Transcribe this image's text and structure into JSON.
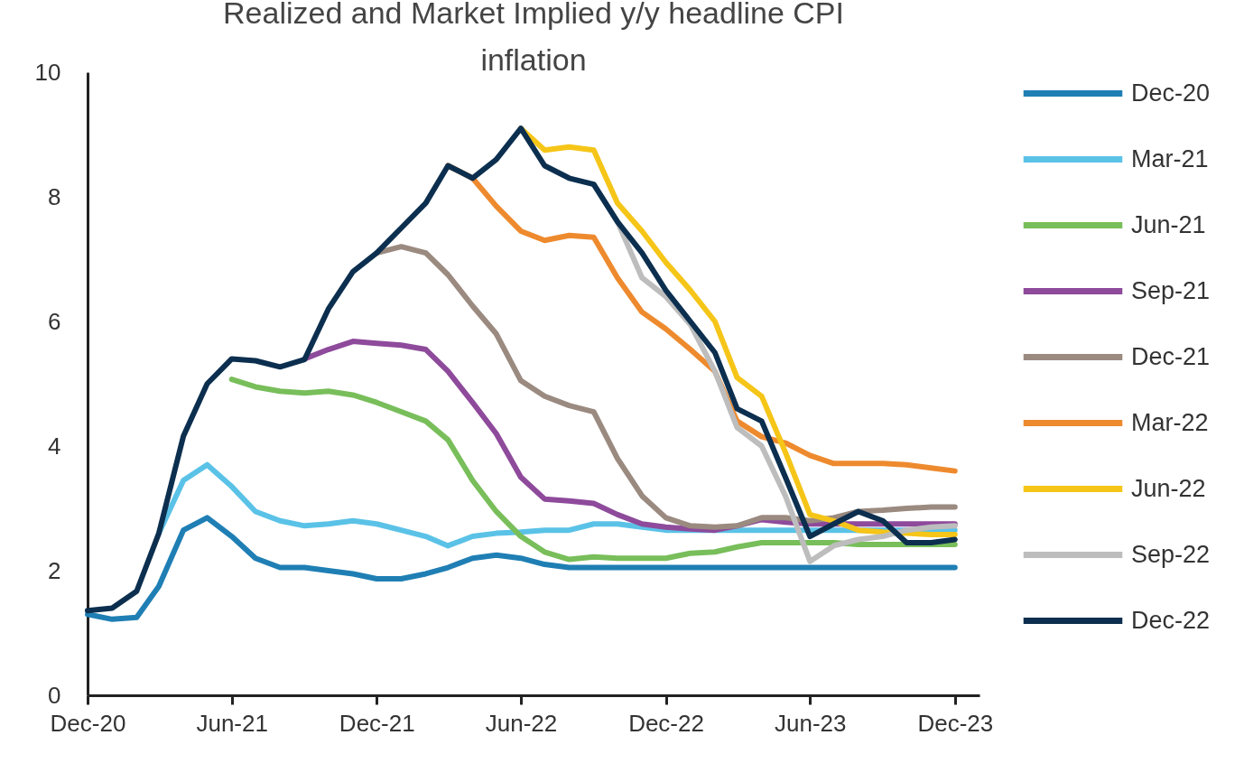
{
  "chart_data": {
    "type": "line",
    "title": "Realized and Market Implied y/y headline CPI inflation",
    "x": [
      "2020-12",
      "2021-01",
      "2021-02",
      "2021-03",
      "2021-04",
      "2021-05",
      "2021-06",
      "2021-07",
      "2021-08",
      "2021-09",
      "2021-10",
      "2021-11",
      "2021-12",
      "2022-01",
      "2022-02",
      "2022-03",
      "2022-04",
      "2022-05",
      "2022-06",
      "2022-07",
      "2022-08",
      "2022-09",
      "2022-10",
      "2022-11",
      "2022-12",
      "2023-01",
      "2023-02",
      "2023-03",
      "2023-04",
      "2023-05",
      "2023-06",
      "2023-07",
      "2023-08",
      "2023-09",
      "2023-10",
      "2023-11",
      "2023-12"
    ],
    "series": [
      {
        "name": "Dec-20",
        "color": "#1f7fb4",
        "values": [
          1.3,
          1.22,
          1.25,
          1.75,
          2.65,
          2.85,
          2.55,
          2.2,
          2.05,
          2.05,
          2.0,
          1.95,
          1.87,
          1.87,
          1.95,
          2.05,
          2.2,
          2.25,
          2.2,
          2.1,
          2.05,
          2.05,
          2.05,
          2.05,
          2.05,
          2.05,
          2.05,
          2.05,
          2.05,
          2.05,
          2.05,
          2.05,
          2.05,
          2.05,
          2.05,
          2.05,
          2.05
        ]
      },
      {
        "name": "Mar-21",
        "color": "#5bc2e7",
        "values": [
          null,
          null,
          null,
          2.6,
          3.45,
          3.7,
          3.35,
          2.95,
          2.8,
          2.72,
          2.75,
          2.8,
          2.75,
          2.65,
          2.55,
          2.4,
          2.55,
          2.6,
          2.62,
          2.65,
          2.65,
          2.75,
          2.75,
          2.7,
          2.65,
          2.65,
          2.65,
          2.65,
          2.65,
          2.65,
          2.65,
          2.65,
          2.65,
          2.65,
          2.65,
          2.65,
          2.65
        ]
      },
      {
        "name": "Jun-21",
        "color": "#78be5a",
        "values": [
          null,
          null,
          null,
          null,
          null,
          null,
          5.07,
          4.95,
          4.88,
          4.85,
          4.88,
          4.82,
          4.7,
          4.55,
          4.4,
          4.1,
          3.45,
          2.95,
          2.55,
          2.3,
          2.18,
          2.22,
          2.2,
          2.2,
          2.2,
          2.28,
          2.3,
          2.38,
          2.45,
          2.45,
          2.45,
          2.45,
          2.42,
          2.42,
          2.42,
          2.42,
          2.42
        ]
      },
      {
        "name": "Sep-21",
        "color": "#8e4a9b",
        "values": [
          null,
          null,
          null,
          null,
          null,
          null,
          null,
          null,
          null,
          5.4,
          5.55,
          5.68,
          5.65,
          5.62,
          5.55,
          5.2,
          4.7,
          4.2,
          3.5,
          3.15,
          3.12,
          3.08,
          2.9,
          2.75,
          2.7,
          2.67,
          2.65,
          2.72,
          2.82,
          2.78,
          2.75,
          2.75,
          2.75,
          2.75,
          2.75,
          2.75,
          2.75
        ]
      },
      {
        "name": "Dec-21",
        "color": "#9a8a80",
        "values": [
          null,
          null,
          null,
          null,
          null,
          null,
          null,
          null,
          null,
          null,
          null,
          null,
          7.1,
          7.2,
          7.1,
          6.75,
          6.25,
          5.8,
          5.05,
          4.8,
          4.65,
          4.55,
          3.8,
          3.2,
          2.85,
          2.72,
          2.7,
          2.72,
          2.85,
          2.85,
          2.8,
          2.85,
          2.95,
          2.97,
          3.0,
          3.02,
          3.02
        ]
      },
      {
        "name": "Mar-22",
        "color": "#ee8a2e",
        "values": [
          null,
          null,
          null,
          null,
          null,
          null,
          null,
          null,
          null,
          null,
          null,
          null,
          null,
          null,
          null,
          8.5,
          8.3,
          7.85,
          7.45,
          7.3,
          7.38,
          7.35,
          6.7,
          6.15,
          5.88,
          5.55,
          5.2,
          4.4,
          4.15,
          4.05,
          3.85,
          3.72,
          3.72,
          3.72,
          3.7,
          3.65,
          3.6
        ]
      },
      {
        "name": "Jun-22",
        "color": "#f5c518",
        "values": [
          null,
          null,
          null,
          null,
          null,
          null,
          null,
          null,
          null,
          null,
          null,
          null,
          null,
          null,
          null,
          null,
          null,
          null,
          9.1,
          8.75,
          8.8,
          8.75,
          7.9,
          7.45,
          6.95,
          6.5,
          6.0,
          5.1,
          4.8,
          3.9,
          2.9,
          2.8,
          2.65,
          2.62,
          2.6,
          2.58,
          2.58
        ]
      },
      {
        "name": "Sep-22",
        "color": "#bdbdbd",
        "values": [
          null,
          null,
          null,
          null,
          null,
          null,
          null,
          null,
          null,
          null,
          null,
          null,
          null,
          null,
          null,
          null,
          null,
          null,
          null,
          null,
          null,
          8.2,
          7.6,
          6.7,
          6.4,
          5.95,
          5.2,
          4.3,
          4.0,
          3.2,
          2.15,
          2.4,
          2.5,
          2.55,
          2.65,
          2.7,
          2.72
        ]
      },
      {
        "name": "Dec-22",
        "color": "#0c2f4f",
        "values": [
          1.36,
          1.4,
          1.67,
          2.6,
          4.16,
          5.0,
          5.4,
          5.37,
          5.27,
          5.39,
          6.2,
          6.8,
          7.1,
          7.5,
          7.9,
          8.5,
          8.3,
          8.6,
          9.1,
          8.5,
          8.3,
          8.2,
          7.6,
          7.1,
          6.5,
          6.0,
          5.5,
          4.6,
          4.4,
          3.5,
          2.55,
          2.75,
          2.95,
          2.8,
          2.45,
          2.45,
          2.5
        ]
      }
    ],
    "xlim": [
      "2020-12",
      "2024-01"
    ],
    "xticks": [
      {
        "value": "2020-12",
        "label": "Dec-20"
      },
      {
        "value": "2021-06",
        "label": "Jun-21"
      },
      {
        "value": "2021-12",
        "label": "Dec-21"
      },
      {
        "value": "2022-06",
        "label": "Jun-22"
      },
      {
        "value": "2022-12",
        "label": "Dec-22"
      },
      {
        "value": "2023-06",
        "label": "Jun-23"
      },
      {
        "value": "2023-12",
        "label": "Dec-23"
      }
    ],
    "ylim": [
      0,
      10
    ],
    "yticks": [
      0,
      2,
      4,
      6,
      8,
      10
    ],
    "legend": "right",
    "line_style": "solid"
  }
}
